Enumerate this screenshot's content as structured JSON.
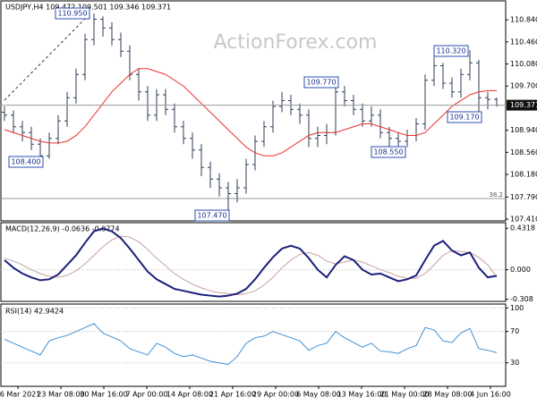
{
  "chart_data": [
    {
      "type": "ohlc",
      "title": "USDJPY,H4  109.472 109.501 109.346 109.371",
      "watermark": "ActionForex.com",
      "color": "#2f3b55",
      "ylim": [
        107.38,
        111.15
      ],
      "yticks": [
        {
          "value": 110.84,
          "label": "110.840"
        },
        {
          "value": 110.46,
          "label": "110.460"
        },
        {
          "value": 110.08,
          "label": "110.080"
        },
        {
          "value": 109.7,
          "label": "109.700"
        },
        {
          "value": 108.94,
          "label": "108.940"
        },
        {
          "value": 108.56,
          "label": "108.560"
        },
        {
          "value": 108.18,
          "label": "108.180"
        },
        {
          "value": 107.79,
          "label": "107.790"
        },
        {
          "value": 107.41,
          "label": "107.410"
        }
      ],
      "last_price": 109.371,
      "fib_label": "38.2",
      "open": [
        109.25,
        109.2,
        109.0,
        108.9,
        108.7,
        108.5,
        108.8,
        109.1,
        109.5,
        109.9,
        110.5,
        110.85,
        110.7,
        110.5,
        110.3,
        109.9,
        109.6,
        109.2,
        109.55,
        109.3,
        109.0,
        108.8,
        108.6,
        108.3,
        108.1,
        107.95,
        107.85,
        107.95,
        108.35,
        108.75,
        109.0,
        109.35,
        109.45,
        109.3,
        109.2,
        108.8,
        108.85,
        108.9,
        109.6,
        109.45,
        109.3,
        109.1,
        109.2,
        108.9,
        108.8,
        108.75,
        108.85,
        109.05,
        109.8,
        110.05,
        109.75,
        109.6,
        109.9,
        110.1,
        109.5,
        109.472
      ],
      "high": [
        109.35,
        109.28,
        109.1,
        109.0,
        108.8,
        108.9,
        109.2,
        109.6,
        110.0,
        110.6,
        110.95,
        110.9,
        110.8,
        110.62,
        110.4,
        110.0,
        109.7,
        109.65,
        109.65,
        109.4,
        109.1,
        108.9,
        108.7,
        108.4,
        108.2,
        108.05,
        108.1,
        108.45,
        108.85,
        109.1,
        109.45,
        109.6,
        109.55,
        109.4,
        109.3,
        109.0,
        109.05,
        109.77,
        109.7,
        109.55,
        109.4,
        109.35,
        109.3,
        109.0,
        108.9,
        108.95,
        109.15,
        109.9,
        110.2,
        110.1,
        109.85,
        110.0,
        110.32,
        110.15,
        109.6,
        109.501
      ],
      "low": [
        109.1,
        108.9,
        108.75,
        108.6,
        108.4,
        108.45,
        108.7,
        109.0,
        109.4,
        109.8,
        110.4,
        110.55,
        110.4,
        110.2,
        109.8,
        109.45,
        109.1,
        109.1,
        109.2,
        108.9,
        108.7,
        108.45,
        108.15,
        107.95,
        107.8,
        107.47,
        107.7,
        107.85,
        108.25,
        108.65,
        108.9,
        109.25,
        109.2,
        109.05,
        108.65,
        108.65,
        108.7,
        108.85,
        109.35,
        109.2,
        109.0,
        109.0,
        108.8,
        108.65,
        108.55,
        108.65,
        108.75,
        108.95,
        109.7,
        109.65,
        109.5,
        109.5,
        109.8,
        109.17,
        109.3,
        109.346
      ],
      "close": [
        109.2,
        109.0,
        108.9,
        108.7,
        108.5,
        108.8,
        109.1,
        109.5,
        109.9,
        110.5,
        110.85,
        110.7,
        110.5,
        110.3,
        109.9,
        109.6,
        109.2,
        109.55,
        109.3,
        109.0,
        108.8,
        108.6,
        108.3,
        108.1,
        107.95,
        107.85,
        107.95,
        108.35,
        108.75,
        109.0,
        109.35,
        109.45,
        109.3,
        109.2,
        108.8,
        108.85,
        108.9,
        109.6,
        109.45,
        109.3,
        109.1,
        109.2,
        108.9,
        108.8,
        108.75,
        108.85,
        109.05,
        109.8,
        110.05,
        109.75,
        109.6,
        109.9,
        110.1,
        109.5,
        109.47,
        109.371
      ],
      "ma": {
        "color": "#e8322e",
        "values": [
          108.95,
          108.9,
          108.85,
          108.8,
          108.75,
          108.72,
          108.72,
          108.75,
          108.85,
          109.0,
          109.2,
          109.4,
          109.6,
          109.75,
          109.9,
          110.0,
          110.0,
          109.95,
          109.9,
          109.8,
          109.7,
          109.55,
          109.4,
          109.25,
          109.1,
          108.95,
          108.8,
          108.65,
          108.55,
          108.5,
          108.5,
          108.55,
          108.65,
          108.75,
          108.85,
          108.9,
          108.9,
          108.9,
          108.95,
          109.0,
          109.05,
          109.05,
          109.0,
          108.95,
          108.9,
          108.85,
          108.85,
          108.9,
          109.05,
          109.2,
          109.35,
          109.45,
          109.55,
          109.6,
          109.62,
          109.62
        ]
      },
      "annotations": [
        "110.950",
        "108.400",
        "107.470",
        "109.770",
        "108.550",
        "110.320",
        "109.170"
      ]
    },
    {
      "type": "line",
      "title": "MACD(12,26,9) -0.0636 -0.0774",
      "ylim": [
        -0.33,
        0.49
      ],
      "yticks": [
        0.4318,
        {
          "value": 0,
          "label": "0.000"
        },
        -0.308
      ],
      "series": [
        {
          "color": "#1a1f7a",
          "values": [
            0.1,
            0.02,
            -0.04,
            -0.08,
            -0.11,
            -0.1,
            -0.05,
            0.05,
            0.15,
            0.28,
            0.4,
            0.43,
            0.4,
            0.33,
            0.22,
            0.1,
            -0.02,
            -0.1,
            -0.15,
            -0.2,
            -0.22,
            -0.24,
            -0.26,
            -0.27,
            -0.28,
            -0.27,
            -0.25,
            -0.2,
            -0.1,
            0.02,
            0.13,
            0.22,
            0.25,
            0.22,
            0.12,
            0.0,
            -0.08,
            0.05,
            0.14,
            0.1,
            0.0,
            -0.05,
            -0.04,
            -0.08,
            -0.12,
            -0.1,
            -0.06,
            0.1,
            0.25,
            0.3,
            0.2,
            0.15,
            0.18,
            0.02,
            -0.08,
            -0.0636
          ]
        },
        {
          "color": "#c8a0a0",
          "values": [
            0.12,
            0.09,
            0.05,
            0.0,
            -0.04,
            -0.07,
            -0.08,
            -0.06,
            -0.01,
            0.06,
            0.15,
            0.24,
            0.31,
            0.35,
            0.34,
            0.29,
            0.21,
            0.12,
            0.04,
            -0.04,
            -0.1,
            -0.15,
            -0.19,
            -0.22,
            -0.24,
            -0.25,
            -0.26,
            -0.25,
            -0.22,
            -0.16,
            -0.08,
            0.02,
            0.1,
            0.16,
            0.18,
            0.15,
            0.09,
            0.06,
            0.08,
            0.1,
            0.08,
            0.04,
            0.0,
            -0.03,
            -0.07,
            -0.09,
            -0.09,
            -0.04,
            0.05,
            0.15,
            0.2,
            0.19,
            0.18,
            0.13,
            0.05,
            -0.0774
          ]
        }
      ]
    },
    {
      "type": "line",
      "title": "RSI(14) 42.9424",
      "ylim": [
        0,
        105
      ],
      "yticks": [
        100,
        70,
        30
      ],
      "series": [
        {
          "color": "#3f8fd8",
          "values": [
            60,
            55,
            50,
            45,
            40,
            58,
            62,
            65,
            70,
            75,
            80,
            68,
            63,
            58,
            48,
            44,
            40,
            55,
            50,
            42,
            38,
            40,
            36,
            32,
            30,
            28,
            38,
            55,
            62,
            64,
            70,
            66,
            62,
            58,
            46,
            52,
            55,
            70,
            62,
            56,
            50,
            55,
            45,
            44,
            42,
            48,
            52,
            75,
            72,
            58,
            56,
            68,
            74,
            48,
            46,
            42.9424
          ]
        }
      ],
      "x_labels": [
        "16 Mar 2021",
        "23 Mar 08:00",
        "30 Mar 16:00",
        "7 Apr 00:00",
        "14 Apr 08:00",
        "21 Apr 16:00",
        "29 Apr 00:00",
        "6 May 08:00",
        "13 May 16:00",
        "21 May 00:00",
        "28 May 08:00",
        "4 Jun 16:00"
      ]
    }
  ]
}
